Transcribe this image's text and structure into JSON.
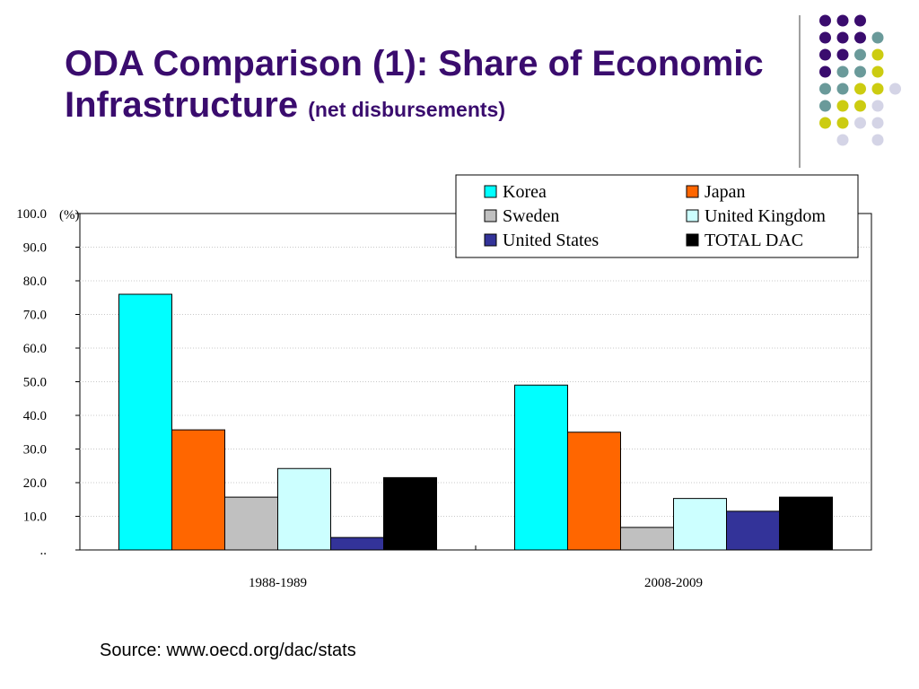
{
  "page": {
    "title_main": "ODA Comparison (1): Share of Economic Infrastructure",
    "title_sub": "(net disbursements)",
    "source": "Source: www.oecd.org/dac/stats"
  },
  "decoration": {
    "dot_colors": {
      "purple": "#3a0c6e",
      "teal": "#6a9a9a",
      "yellow": "#cccc11",
      "lavender": "#d4d4e6"
    }
  },
  "chart_data": {
    "type": "bar",
    "categories": [
      "1988-1989",
      "2008-2009"
    ],
    "unit_label": "(%)",
    "ylim": [
      0,
      100
    ],
    "yticks": [
      "..",
      "10.0",
      "20.0",
      "30.0",
      "40.0",
      "50.0",
      "60.0",
      "70.0",
      "80.0",
      "90.0",
      "100.0"
    ],
    "grid": true,
    "legend_position": "top-right",
    "series": [
      {
        "name": "Korea",
        "color": "#00ffff",
        "values": [
          76.0,
          49.0
        ]
      },
      {
        "name": "Japan",
        "color": "#ff6600",
        "values": [
          35.7,
          35.0
        ]
      },
      {
        "name": "Sweden",
        "color": "#c0c0c0",
        "values": [
          15.7,
          6.7
        ]
      },
      {
        "name": "United Kingdom",
        "color": "#ccffff",
        "values": [
          24.2,
          15.3
        ]
      },
      {
        "name": "United States",
        "color": "#333399",
        "values": [
          3.7,
          11.5
        ]
      },
      {
        "name": "TOTAL DAC",
        "color": "#000000",
        "values": [
          21.5,
          15.7
        ]
      }
    ]
  }
}
